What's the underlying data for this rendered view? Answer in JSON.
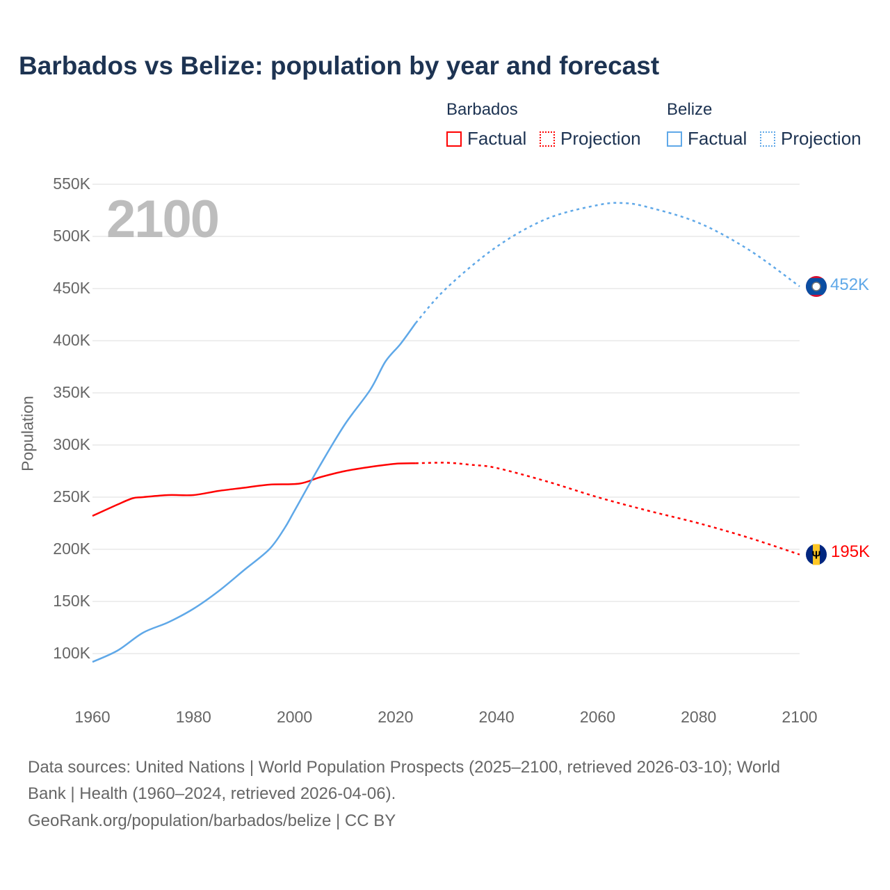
{
  "title": "Barbados vs Belize: population by year and forecast",
  "legend": {
    "groups": [
      {
        "name": "Barbados",
        "factual": "Factual",
        "projection": "Projection",
        "color": "#ff0000"
      },
      {
        "name": "Belize",
        "factual": "Factual",
        "projection": "Projection",
        "color": "#5fa8e8"
      }
    ]
  },
  "year_label": "2100",
  "end_labels": {
    "belize": "452K",
    "barbados": "195K"
  },
  "footer": {
    "line1": "Data sources: United Nations | World Population Prospects (2025–2100, retrieved 2026-03-10); World",
    "line2": "Bank | Health (1960–2024, retrieved 2026-04-06).",
    "line3": "GeoRank.org/population/barbados/belize | CC BY"
  },
  "chart_data": {
    "type": "line",
    "title": "Barbados vs Belize: population by year and forecast",
    "xlabel": "",
    "ylabel": "Population",
    "xlim": [
      1960,
      2100
    ],
    "ylim": [
      100000,
      550000
    ],
    "x_ticks": [
      "1960",
      "1980",
      "2000",
      "2020",
      "2040",
      "2060",
      "2080",
      "2100"
    ],
    "y_ticks": [
      "550K",
      "500K",
      "450K",
      "400K",
      "350K",
      "300K",
      "250K",
      "200K",
      "150K",
      "100K"
    ],
    "grid": true,
    "legend_position": "top-right",
    "series": [
      {
        "name": "Barbados Factual",
        "color": "#ff0000",
        "style": "solid",
        "points": [
          [
            1960,
            232000
          ],
          [
            1965,
            243000
          ],
          [
            1968,
            249000
          ],
          [
            1970,
            250000
          ],
          [
            1975,
            252000
          ],
          [
            1980,
            252000
          ],
          [
            1985,
            256000
          ],
          [
            1990,
            259000
          ],
          [
            1995,
            262000
          ],
          [
            2001,
            263000
          ],
          [
            2005,
            269000
          ],
          [
            2010,
            275000
          ],
          [
            2015,
            279000
          ],
          [
            2020,
            282000
          ],
          [
            2024,
            282500
          ]
        ]
      },
      {
        "name": "Barbados Projection",
        "color": "#ff0000",
        "style": "dotted",
        "points": [
          [
            2024,
            282500
          ],
          [
            2030,
            283000
          ],
          [
            2035,
            281000
          ],
          [
            2040,
            278000
          ],
          [
            2050,
            265000
          ],
          [
            2060,
            250000
          ],
          [
            2070,
            237000
          ],
          [
            2080,
            225000
          ],
          [
            2090,
            211000
          ],
          [
            2100,
            195000
          ]
        ]
      },
      {
        "name": "Belize Factual",
        "color": "#5fa8e8",
        "style": "solid",
        "points": [
          [
            1960,
            92000
          ],
          [
            1965,
            103000
          ],
          [
            1970,
            120000
          ],
          [
            1975,
            130000
          ],
          [
            1980,
            143000
          ],
          [
            1985,
            160000
          ],
          [
            1990,
            180000
          ],
          [
            1995,
            200000
          ],
          [
            1998,
            220000
          ],
          [
            2000,
            237000
          ],
          [
            2005,
            280000
          ],
          [
            2010,
            320000
          ],
          [
            2015,
            353000
          ],
          [
            2018,
            380000
          ],
          [
            2021,
            397000
          ],
          [
            2024,
            417000
          ]
        ]
      },
      {
        "name": "Belize Projection",
        "color": "#5fa8e8",
        "style": "dotted",
        "points": [
          [
            2024,
            417000
          ],
          [
            2030,
            450000
          ],
          [
            2040,
            490000
          ],
          [
            2050,
            517000
          ],
          [
            2060,
            530000
          ],
          [
            2065,
            532000
          ],
          [
            2070,
            528000
          ],
          [
            2080,
            513000
          ],
          [
            2090,
            487000
          ],
          [
            2100,
            452000
          ]
        ]
      }
    ]
  }
}
